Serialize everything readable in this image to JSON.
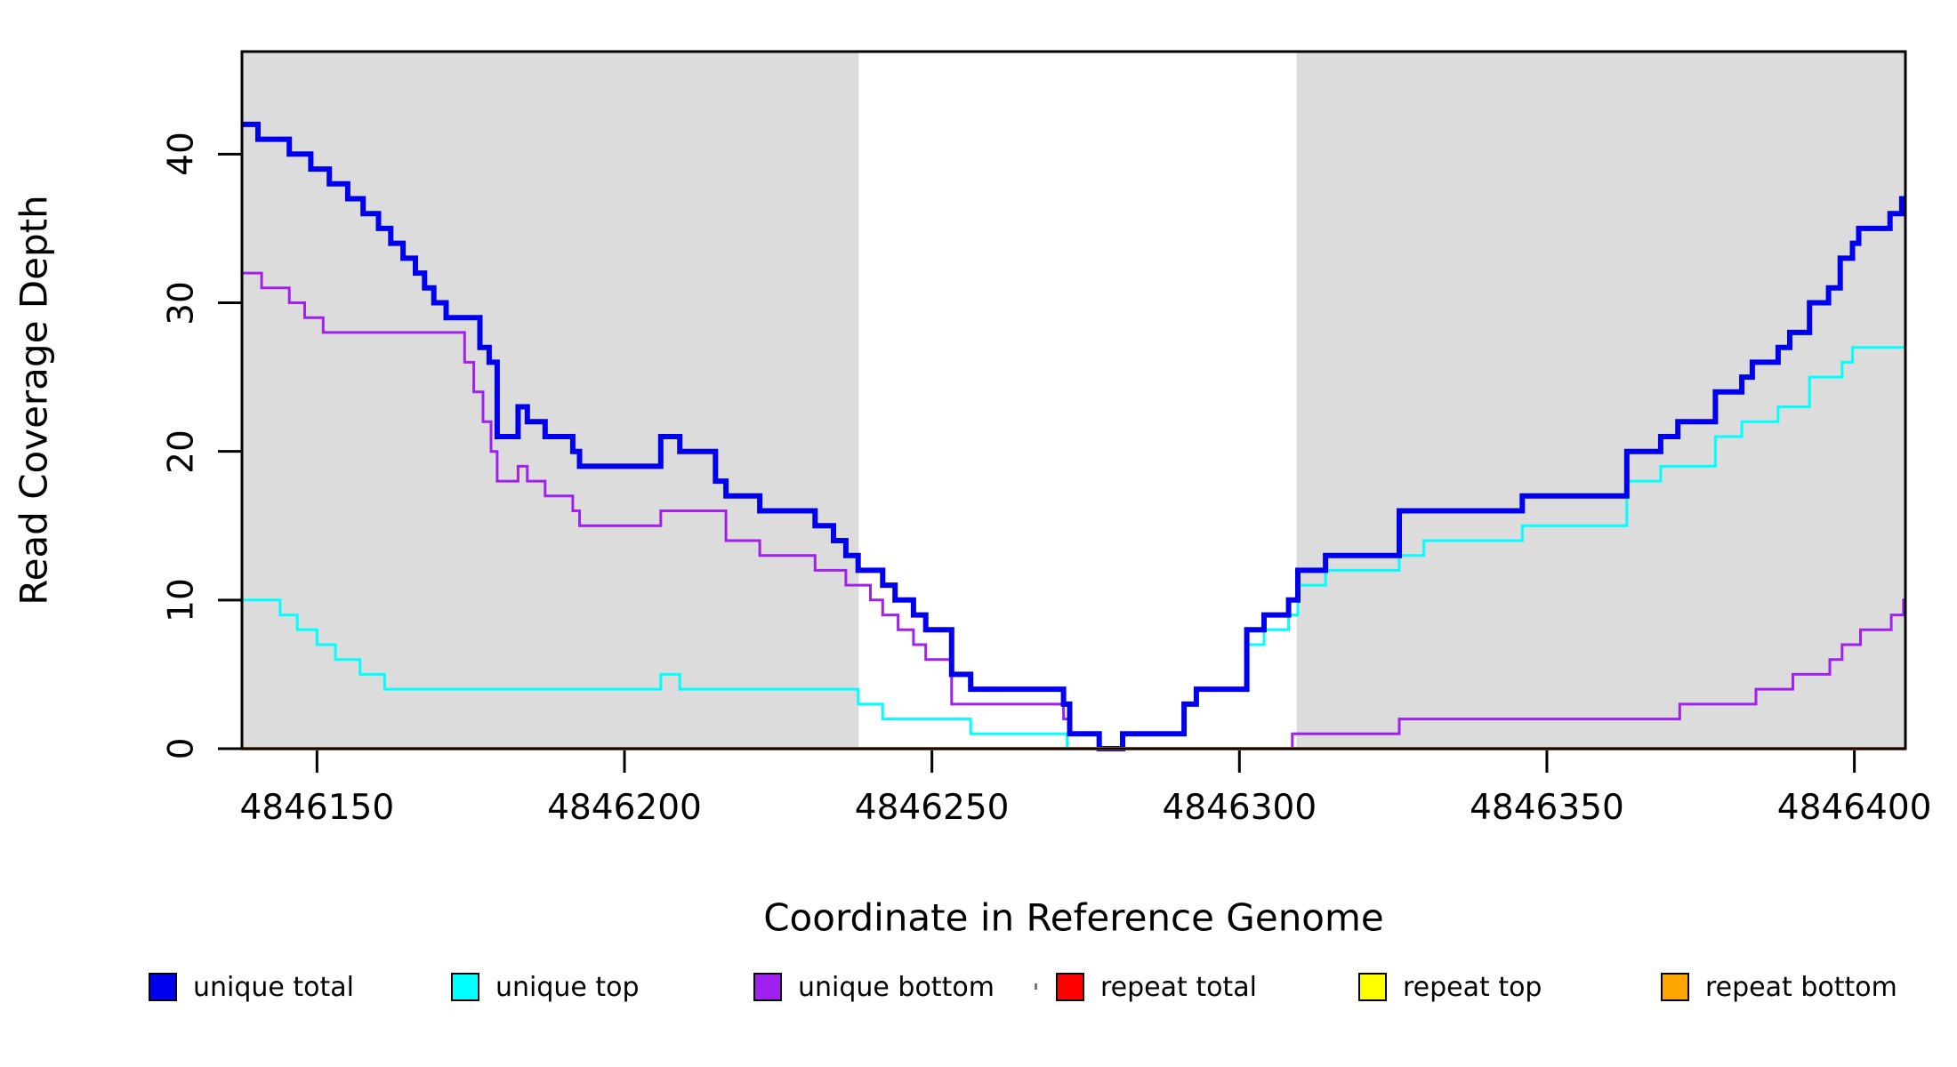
{
  "figure": {
    "y_axis_title": "Read Coverage Depth",
    "x_axis_title": "Coordinate in Reference Genome"
  },
  "chart_data": {
    "type": "line",
    "subtype": "step-post",
    "title": "",
    "xlabel": "Coordinate in Reference Genome",
    "ylabel": "Read Coverage Depth",
    "xlim": [
      4846137.8,
      4846408.3
    ],
    "ylim": [
      0,
      46.9
    ],
    "grid": false,
    "legend_position": "bottom",
    "x_ticks": [
      4846150,
      4846200,
      4846250,
      4846300,
      4846350,
      4846400
    ],
    "y_ticks": [
      0,
      10,
      20,
      30,
      40
    ],
    "plot_background": "#ffffff",
    "shaded_regions": [
      {
        "x0": 4846137.8,
        "x1": 4846238.1,
        "color": "#DCDCDC",
        "meaning": "repeat region"
      },
      {
        "x0": 4846309.3,
        "x1": 4846408.3,
        "color": "#DCDCDC",
        "meaning": "repeat region"
      }
    ],
    "series": [
      {
        "name": "unique total",
        "color": "#0000EE",
        "line_width": 6,
        "points": [
          [
            4846137.8,
            42
          ],
          [
            4846140.4,
            41
          ],
          [
            4846145.5,
            40
          ],
          [
            4846149,
            39
          ],
          [
            4846152,
            38
          ],
          [
            4846155,
            37
          ],
          [
            4846157.5,
            36
          ],
          [
            4846160,
            35
          ],
          [
            4846162,
            34
          ],
          [
            4846164,
            33
          ],
          [
            4846166,
            32
          ],
          [
            4846167.5,
            31
          ],
          [
            4846169,
            30
          ],
          [
            4846171,
            29
          ],
          [
            4846176.5,
            27
          ],
          [
            4846178,
            26
          ],
          [
            4846179.3,
            21
          ],
          [
            4846182.7,
            23
          ],
          [
            4846184.2,
            22
          ],
          [
            4846187.1,
            21
          ],
          [
            4846191.6,
            20
          ],
          [
            4846192.7,
            19
          ],
          [
            4846205.9,
            21
          ],
          [
            4846209,
            20
          ],
          [
            4846214.8,
            18
          ],
          [
            4846216.5,
            17
          ],
          [
            4846222,
            16
          ],
          [
            4846231,
            15
          ],
          [
            4846234,
            14
          ],
          [
            4846236,
            13
          ],
          [
            4846238,
            12
          ],
          [
            4846242,
            11
          ],
          [
            4846244,
            10
          ],
          [
            4846247,
            9
          ],
          [
            4846249,
            8
          ],
          [
            4846253.2,
            5
          ],
          [
            4846256.3,
            4
          ],
          [
            4846271.4,
            3
          ],
          [
            4846272.4,
            1
          ],
          [
            4846277.2,
            0
          ],
          [
            4846281,
            1
          ],
          [
            4846291,
            3
          ],
          [
            4846293,
            4
          ],
          [
            4846301.2,
            8
          ],
          [
            4846304,
            9
          ],
          [
            4846308,
            10
          ],
          [
            4846309.5,
            12
          ],
          [
            4846314,
            13
          ],
          [
            4846326,
            16
          ],
          [
            4846346,
            17
          ],
          [
            4846363,
            20
          ],
          [
            4846368.5,
            21
          ],
          [
            4846371.3,
            22
          ],
          [
            4846377.4,
            24
          ],
          [
            4846381.7,
            25
          ],
          [
            4846383.4,
            26
          ],
          [
            4846387.6,
            27
          ],
          [
            4846389.5,
            28
          ],
          [
            4846392.7,
            30
          ],
          [
            4846395.8,
            31
          ],
          [
            4846397.7,
            33
          ],
          [
            4846399.7,
            34
          ],
          [
            4846400.7,
            35
          ],
          [
            4846405.8,
            36
          ],
          [
            4846407.7,
            37
          ]
        ]
      },
      {
        "name": "unique top",
        "color": "#00FFFF",
        "line_width": 3,
        "points": [
          [
            4846137.8,
            10
          ],
          [
            4846144,
            9
          ],
          [
            4846146.8,
            8
          ],
          [
            4846150,
            7
          ],
          [
            4846153,
            6
          ],
          [
            4846157,
            5
          ],
          [
            4846161,
            4
          ],
          [
            4846205.9,
            5
          ],
          [
            4846209,
            4
          ],
          [
            4846238,
            3
          ],
          [
            4846242,
            2
          ],
          [
            4846256.3,
            1
          ],
          [
            4846272,
            0
          ],
          [
            4846281,
            1
          ],
          [
            4846291,
            3
          ],
          [
            4846293,
            4
          ],
          [
            4846301.2,
            7
          ],
          [
            4846304,
            8
          ],
          [
            4846308,
            9
          ],
          [
            4846309.5,
            11
          ],
          [
            4846314,
            12
          ],
          [
            4846326,
            13
          ],
          [
            4846330,
            14
          ],
          [
            4846346,
            15
          ],
          [
            4846363,
            18
          ],
          [
            4846368.5,
            19
          ],
          [
            4846377.4,
            21
          ],
          [
            4846381.7,
            22
          ],
          [
            4846387.6,
            23
          ],
          [
            4846392.7,
            25
          ],
          [
            4846398,
            26
          ],
          [
            4846399.7,
            27
          ]
        ]
      },
      {
        "name": "unique bottom",
        "color": "#A020F0",
        "line_width": 3,
        "points": [
          [
            4846137.8,
            32
          ],
          [
            4846141,
            31
          ],
          [
            4846145.5,
            30
          ],
          [
            4846148,
            29
          ],
          [
            4846151,
            28
          ],
          [
            4846174,
            26
          ],
          [
            4846175.5,
            24
          ],
          [
            4846177,
            22
          ],
          [
            4846178.3,
            20
          ],
          [
            4846179.3,
            18
          ],
          [
            4846182.7,
            19
          ],
          [
            4846184.2,
            18
          ],
          [
            4846187.1,
            17
          ],
          [
            4846191.6,
            16
          ],
          [
            4846192.7,
            15
          ],
          [
            4846205.9,
            16
          ],
          [
            4846216.5,
            14
          ],
          [
            4846222,
            13
          ],
          [
            4846231,
            12
          ],
          [
            4846236,
            11
          ],
          [
            4846240,
            10
          ],
          [
            4846242,
            9
          ],
          [
            4846244.5,
            8
          ],
          [
            4846247,
            7
          ],
          [
            4846249,
            6
          ],
          [
            4846253.2,
            3
          ],
          [
            4846271.4,
            2
          ],
          [
            4846272.4,
            1
          ],
          [
            4846277.2,
            0
          ],
          [
            4846308.6,
            1
          ],
          [
            4846326,
            2
          ],
          [
            4846371.6,
            3
          ],
          [
            4846384,
            4
          ],
          [
            4846390,
            5
          ],
          [
            4846396,
            6
          ],
          [
            4846398,
            7
          ],
          [
            4846401,
            8
          ],
          [
            4846406,
            9
          ],
          [
            4846408,
            10
          ]
        ]
      },
      {
        "name": "repeat total",
        "color": "#FF0000",
        "line_width": 3,
        "points": [
          [
            4846137.8,
            0
          ]
        ]
      },
      {
        "name": "repeat top",
        "color": "#FFFF00",
        "line_width": 3,
        "points": [
          [
            4846137.8,
            0
          ]
        ]
      },
      {
        "name": "repeat bottom",
        "color": "#FFA500",
        "line_width": 4,
        "points": [
          [
            4846137.8,
            0
          ]
        ]
      }
    ]
  }
}
